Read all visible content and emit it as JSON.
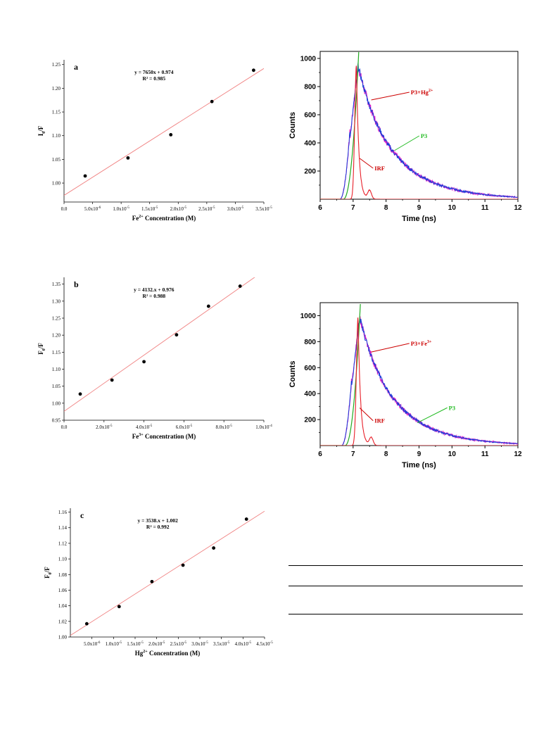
{
  "colors": {
    "fit_line": "#f08080",
    "point": "#000000",
    "irf": "#e8202a",
    "p3": "#1a3fd8",
    "p3_ion": "#e020c8",
    "green_rise": "#22aa22",
    "label_red": "#cc0000",
    "label_green": "#22bb22"
  },
  "chart_data": [
    {
      "id": "a",
      "type": "scatter",
      "panel_label": "a",
      "equation": "y = 7650x + 0.974",
      "r2": "R² = 0.985",
      "ylabel": "I",
      "ylabel_sub": "0",
      "ylabel_tail": "/F",
      "xlabel": "Fe",
      "xlabel_sup": "2+",
      "xlabel_tail": " Concentration (M)",
      "xlim": [
        0,
        3.5e-05
      ],
      "ylim": [
        0.96,
        1.26
      ],
      "x_ticks": [
        {
          "v": 0,
          "b": "0.0",
          "e": ""
        },
        {
          "v": 5e-06,
          "b": "5.0x10",
          "e": "-6"
        },
        {
          "v": 1e-05,
          "b": "1.0x10",
          "e": "-5"
        },
        {
          "v": 1.5e-05,
          "b": "1.5x10",
          "e": "-5"
        },
        {
          "v": 2e-05,
          "b": "2.0x10",
          "e": "-5"
        },
        {
          "v": 2.5e-05,
          "b": "2.5x10",
          "e": "-5"
        },
        {
          "v": 3e-05,
          "b": "3.0x10",
          "e": "-5"
        },
        {
          "v": 3.5e-05,
          "b": "3.5x10",
          "e": "-5"
        }
      ],
      "y_ticks": [
        "1.00",
        "1.05",
        "1.10",
        "1.15",
        "1.20",
        "1.25"
      ],
      "points": [
        [
          3.7e-06,
          1.015
        ],
        [
          1.12e-05,
          1.053
        ],
        [
          1.87e-05,
          1.102
        ],
        [
          2.59e-05,
          1.172
        ],
        [
          3.32e-05,
          1.238
        ]
      ],
      "fit": {
        "slope": 7650,
        "intercept": 0.974
      }
    },
    {
      "id": "b",
      "type": "scatter",
      "panel_label": "b",
      "equation": "y = 4132.x + 0.976",
      "r2": "R² = 0.988",
      "ylabel": "F",
      "ylabel_sub": "0",
      "ylabel_tail": "/F",
      "xlabel": "Fe",
      "xlabel_sup": "3+",
      "xlabel_tail": " Concentration (M)",
      "xlim": [
        0,
        0.0001
      ],
      "ylim": [
        0.95,
        1.37
      ],
      "x_ticks": [
        {
          "v": 0,
          "b": "0.0",
          "e": ""
        },
        {
          "v": 2e-05,
          "b": "2.0x10",
          "e": "-5"
        },
        {
          "v": 4e-05,
          "b": "4.0x10",
          "e": "-5"
        },
        {
          "v": 6e-05,
          "b": "6.0x10",
          "e": "-5"
        },
        {
          "v": 8e-05,
          "b": "8.0x10",
          "e": "-5"
        },
        {
          "v": 0.0001,
          "b": "1.0x10",
          "e": "-4"
        }
      ],
      "y_ticks": [
        "0.95",
        "1.00",
        "1.05",
        "1.10",
        "1.15",
        "1.20",
        "1.25",
        "1.30",
        "1.35"
      ],
      "points": [
        [
          8.1e-06,
          1.027
        ],
        [
          2.4e-05,
          1.068
        ],
        [
          4e-05,
          1.122
        ],
        [
          5.63e-05,
          1.201
        ],
        [
          7.23e-05,
          1.285
        ],
        [
          8.81e-05,
          1.344
        ]
      ],
      "fit": {
        "slope": 4132,
        "intercept": 0.976
      }
    },
    {
      "id": "c",
      "type": "scatter",
      "panel_label": "c",
      "equation": "y = 3538.x + 1.002",
      "r2": "R² = 0.992",
      "ylabel": "F",
      "ylabel_sub": "0",
      "ylabel_tail": "/F",
      "xlabel": "Hg",
      "xlabel_sup": "2+",
      "xlabel_tail": " Concentration (M)",
      "xlim": [
        0,
        4.5e-05
      ],
      "ylim": [
        1.0,
        1.165
      ],
      "x_ticks": [
        {
          "v": 5e-06,
          "b": "5.0x10",
          "e": "-6"
        },
        {
          "v": 1e-05,
          "b": "1.0x10",
          "e": "-5"
        },
        {
          "v": 1.5e-05,
          "b": "1.5x10",
          "e": "-5"
        },
        {
          "v": 2e-05,
          "b": "2.0x10",
          "e": "-5"
        },
        {
          "v": 2.5e-05,
          "b": "2.5x10",
          "e": "-5"
        },
        {
          "v": 3e-05,
          "b": "3.0x10",
          "e": "-5"
        },
        {
          "v": 3.5e-05,
          "b": "3.5x10",
          "e": "-5"
        },
        {
          "v": 4e-05,
          "b": "4.0x10",
          "e": "-5"
        },
        {
          "v": 4.5e-05,
          "b": "4.5x10",
          "e": "-5"
        }
      ],
      "y_ticks": [
        "1.00",
        "1.02",
        "1.04",
        "1.06",
        "1.08",
        "1.10",
        "1.12",
        "1.14",
        "1.16"
      ],
      "points": [
        [
          3.8e-06,
          1.017
        ],
        [
          1.13e-05,
          1.039
        ],
        [
          1.89e-05,
          1.071
        ],
        [
          2.61e-05,
          1.092
        ],
        [
          3.32e-05,
          1.114
        ],
        [
          4.08e-05,
          1.151
        ]
      ],
      "fit": {
        "slope": 3538,
        "intercept": 1.002
      }
    },
    {
      "id": "d",
      "type": "line",
      "xlabel": "Time (ns)",
      "ylabel": "Counts",
      "xlim": [
        6,
        12
      ],
      "ylim": [
        0,
        1050
      ],
      "x_ticks": [
        "6",
        "7",
        "8",
        "9",
        "10",
        "11",
        "12"
      ],
      "y_ticks": [
        "200",
        "400",
        "600",
        "800",
        "1000"
      ],
      "labels": {
        "ion": "P3+Hg",
        "ion_sup": "2+",
        "p3": "P3",
        "irf": "IRF"
      },
      "decay": {
        "peak_time": 7.15,
        "peak": 950,
        "tau_fast": 0.55,
        "tau_slow": 1.25,
        "fast_fraction": 0.25
      }
    },
    {
      "id": "e",
      "type": "line",
      "xlabel": "Time (ns)",
      "ylabel": "Counts",
      "xlim": [
        6,
        12
      ],
      "ylim": [
        0,
        1100
      ],
      "x_ticks": [
        "6",
        "7",
        "8",
        "9",
        "10",
        "11",
        "12"
      ],
      "y_ticks": [
        "200",
        "400",
        "600",
        "800",
        "1000"
      ],
      "labels": {
        "ion": "P3+Fe",
        "ion_sup": "3+",
        "p3": "P3",
        "irf": "IRF"
      },
      "decay": {
        "peak_time": 7.2,
        "peak": 990,
        "tau_fast": 0.5,
        "tau_slow": 1.2,
        "fast_fraction": 0.2
      }
    }
  ]
}
